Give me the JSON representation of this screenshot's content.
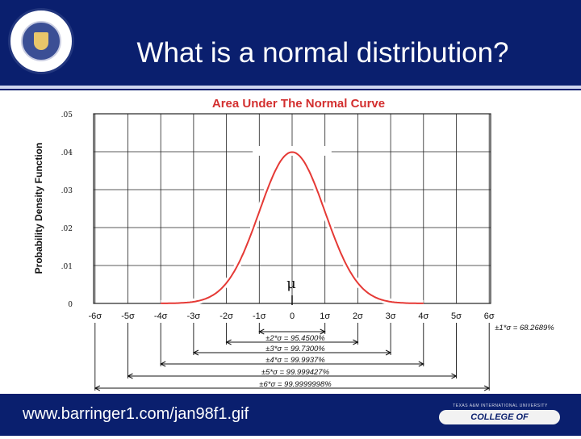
{
  "header": {
    "title": "What is a normal distribution?"
  },
  "footer": {
    "url": "www.barringer1.com/jan98f1.gif",
    "logo_top": "TEXAS A&M INTERNATIONAL UNIVERSITY",
    "logo_badge": "COLLEGE OF ENGINEERING"
  },
  "icons": {
    "seal": "university-seal-icon"
  },
  "colors": {
    "header_bg": "#0a1f6e",
    "curve": "#e53935",
    "title_text": "#d32f2f"
  },
  "chart_data": {
    "type": "line",
    "title": "Area Under The Normal Curve",
    "ylabel": "Probability Density Function",
    "xlabel": "",
    "mean_label": "μ",
    "xlim": [
      -6.5,
      6.5
    ],
    "ylim": [
      0,
      0.05
    ],
    "grid": true,
    "ytick_labels": [
      "0",
      ".01",
      ".02",
      ".03",
      ".04",
      ".05"
    ],
    "yticks": [
      0,
      0.01,
      0.02,
      0.03,
      0.04,
      0.05
    ],
    "xticks": [
      -6,
      -5,
      -4,
      -3,
      -2,
      -1,
      0,
      1,
      2,
      3,
      4,
      5,
      6
    ],
    "xtick_labels": [
      "-6σ",
      "-5σ",
      "-4σ",
      "-3σ",
      "-2σ",
      "-1σ",
      "0",
      "1σ",
      "2σ",
      "3σ",
      "4σ",
      "5σ",
      "6σ"
    ],
    "series": [
      {
        "curve": "normal",
        "mean": 0,
        "sd": 1,
        "peak": 0.0399
      }
    ],
    "intervals": [
      {
        "k": 1,
        "label": "±1*σ = 68.2689%"
      },
      {
        "k": 2,
        "label": "±2*σ = 95.4500%"
      },
      {
        "k": 3,
        "label": "±3*σ = 99.7300%"
      },
      {
        "k": 4,
        "label": "±4*σ = 99.9937%"
      },
      {
        "k": 5,
        "label": "±5*σ = 99.999427%"
      },
      {
        "k": 6,
        "label": "±6*σ = 99.9999998%"
      }
    ]
  }
}
